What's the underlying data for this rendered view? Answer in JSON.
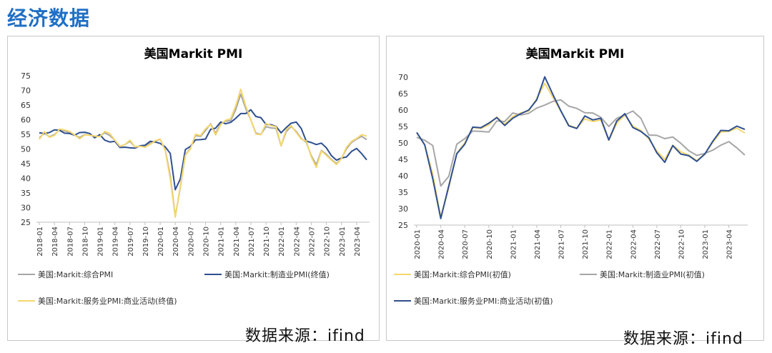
{
  "page_title": "经济数据",
  "sources": [
    "数据来源：ifind",
    "数据来源：ifind"
  ],
  "chart_data": [
    {
      "type": "line",
      "title": "美国Markit  PMI",
      "xlabel": "",
      "ylabel": "",
      "ylim": [
        25,
        75
      ],
      "yticks": [
        25,
        30,
        35,
        40,
        45,
        50,
        55,
        60,
        65,
        70,
        75
      ],
      "grid": false,
      "legend_position": "bottom",
      "x": [
        "2018-01",
        "2018-02",
        "2018-03",
        "2018-04",
        "2018-05",
        "2018-06",
        "2018-07",
        "2018-08",
        "2018-09",
        "2018-10",
        "2018-11",
        "2018-12",
        "2019-01",
        "2019-02",
        "2019-03",
        "2019-04",
        "2019-05",
        "2019-06",
        "2019-07",
        "2019-08",
        "2019-09",
        "2019-10",
        "2019-11",
        "2019-12",
        "2020-01",
        "2020-02",
        "2020-03",
        "2020-04",
        "2020-05",
        "2020-06",
        "2020-07",
        "2020-08",
        "2020-09",
        "2020-10",
        "2020-11",
        "2020-12",
        "2021-01",
        "2021-02",
        "2021-03",
        "2021-04",
        "2021-05",
        "2021-06",
        "2021-07",
        "2021-08",
        "2021-09",
        "2021-10",
        "2021-11",
        "2021-12",
        "2022-01",
        "2022-02",
        "2022-03",
        "2022-04",
        "2022-05",
        "2022-06",
        "2022-07",
        "2022-08",
        "2022-09",
        "2022-10",
        "2022-11",
        "2022-12",
        "2023-01",
        "2023-02",
        "2023-03",
        "2023-04",
        "2023-05",
        "2023-06"
      ],
      "xtick_labels": [
        "2018-01",
        "2018-04",
        "2018-07",
        "2018-10",
        "2019-01",
        "2019-04",
        "2019-07",
        "2019-10",
        "2020-01",
        "2020-04",
        "2020-07",
        "2020-10",
        "2021-01",
        "2021-04",
        "2021-07",
        "2021-10",
        "2022-01",
        "2022-04",
        "2022-07",
        "2022-10",
        "2023-01",
        "2023-04"
      ],
      "series": [
        {
          "name": "美国:Markit:综合PMI",
          "color": "#a6a6a6",
          "values": [
            53.8,
            55.4,
            54.2,
            54.9,
            56.6,
            56.2,
            55.7,
            54.7,
            53.9,
            54.9,
            54.7,
            54.4,
            54.4,
            55.5,
            54.6,
            53.0,
            50.9,
            51.5,
            52.6,
            50.7,
            51.0,
            50.9,
            52.0,
            52.7,
            53.3,
            49.6,
            40.9,
            27.0,
            37.0,
            47.9,
            50.3,
            54.6,
            54.3,
            56.3,
            58.6,
            55.3,
            58.7,
            59.5,
            59.7,
            63.5,
            68.7,
            63.7,
            59.9,
            55.4,
            55.0,
            57.6,
            57.2,
            57.0,
            51.1,
            55.9,
            57.7,
            56.0,
            53.6,
            52.3,
            47.7,
            44.6,
            49.5,
            48.2,
            46.4,
            45.0,
            46.8,
            50.1,
            52.3,
            53.4,
            54.3,
            53.2
          ]
        },
        {
          "name": "美国:Markit:制造业PMI(终值)",
          "color": "#2f4f8f",
          "values": [
            55.5,
            55.3,
            55.6,
            56.5,
            56.4,
            55.4,
            55.3,
            54.7,
            55.6,
            55.7,
            55.3,
            53.8,
            54.9,
            53.0,
            52.4,
            52.6,
            50.5,
            50.6,
            50.4,
            50.3,
            51.1,
            51.3,
            52.6,
            52.4,
            51.9,
            50.7,
            48.5,
            36.1,
            39.8,
            49.8,
            50.9,
            53.1,
            53.2,
            53.4,
            56.7,
            57.1,
            59.2,
            58.6,
            59.1,
            60.5,
            62.1,
            62.1,
            63.4,
            61.1,
            60.7,
            58.4,
            58.3,
            57.7,
            55.5,
            57.3,
            58.8,
            59.2,
            57.0,
            52.7,
            52.2,
            51.5,
            52.0,
            50.4,
            47.7,
            46.2,
            46.9,
            47.3,
            49.2,
            50.2,
            48.4,
            46.3
          ]
        },
        {
          "name": "美国:Markit:服务业PMI:商业活动(终值)",
          "color": "#f5d76e",
          "values": [
            53.3,
            55.9,
            54.0,
            54.6,
            56.8,
            56.5,
            56.0,
            54.8,
            53.5,
            54.8,
            54.7,
            54.4,
            54.2,
            56.0,
            55.3,
            53.0,
            50.9,
            51.5,
            53.0,
            50.7,
            50.9,
            50.6,
            51.6,
            52.8,
            53.4,
            49.4,
            39.8,
            26.7,
            37.5,
            47.9,
            50.0,
            55.0,
            54.6,
            56.9,
            58.4,
            54.8,
            58.3,
            59.8,
            60.4,
            64.7,
            70.4,
            64.6,
            59.9,
            55.1,
            54.9,
            58.7,
            58.0,
            57.6,
            51.2,
            56.5,
            58.0,
            55.6,
            53.4,
            52.7,
            47.3,
            43.7,
            49.3,
            47.8,
            46.2,
            44.7,
            46.8,
            50.6,
            52.6,
            53.6,
            54.9,
            54.4
          ]
        }
      ]
    },
    {
      "type": "line",
      "title": "美国Markit  PMI",
      "xlabel": "",
      "ylabel": "",
      "ylim": [
        25,
        70
      ],
      "yticks": [
        25,
        30,
        35,
        40,
        45,
        50,
        55,
        60,
        65,
        70
      ],
      "grid": false,
      "legend_position": "bottom",
      "x": [
        "2020-01",
        "2020-02",
        "2020-03",
        "2020-04",
        "2020-05",
        "2020-06",
        "2020-07",
        "2020-08",
        "2020-09",
        "2020-10",
        "2020-11",
        "2020-12",
        "2021-01",
        "2021-02",
        "2021-03",
        "2021-04",
        "2021-05",
        "2021-06",
        "2021-07",
        "2021-08",
        "2021-09",
        "2021-10",
        "2021-11",
        "2021-12",
        "2022-01",
        "2022-02",
        "2022-03",
        "2022-04",
        "2022-05",
        "2022-06",
        "2022-07",
        "2022-08",
        "2022-09",
        "2022-10",
        "2022-11",
        "2022-12",
        "2023-01",
        "2023-02",
        "2023-03",
        "2023-04",
        "2023-05",
        "2023-06"
      ],
      "xtick_labels": [
        "2020-01",
        "2020-04",
        "2020-07",
        "2020-10",
        "2021-01",
        "2021-04",
        "2021-07",
        "2021-10",
        "2022-01",
        "2022-04",
        "2022-07",
        "2022-10",
        "2023-01",
        "2023-04"
      ],
      "series": [
        {
          "name": "美国:Markit:综合PMI(初值)",
          "color": "#f5d76e",
          "values": [
            53.1,
            49.4,
            40.5,
            27.4,
            36.4,
            46.8,
            50.0,
            54.7,
            54.4,
            55.5,
            57.9,
            55.7,
            58.0,
            59.1,
            59.7,
            63.5,
            68.1,
            63.9,
            59.7,
            55.4,
            54.5,
            57.3,
            56.5,
            57.0,
            50.8,
            56.0,
            58.5,
            55.1,
            53.8,
            51.2,
            47.5,
            45.0,
            49.3,
            47.3,
            46.3,
            44.6,
            46.6,
            50.2,
            53.3,
            53.5,
            54.5,
            53.0
          ]
        },
        {
          "name": "美国:Markit:制造业PMI(初值)",
          "color": "#a6a6a6",
          "values": [
            51.7,
            50.8,
            49.2,
            36.9,
            39.8,
            49.6,
            51.3,
            53.6,
            53.5,
            53.3,
            56.7,
            56.5,
            59.1,
            58.5,
            59.0,
            60.6,
            61.5,
            62.6,
            63.1,
            61.2,
            60.5,
            59.2,
            59.1,
            57.8,
            55.0,
            57.5,
            58.5,
            59.7,
            57.5,
            52.4,
            52.3,
            51.3,
            51.8,
            49.9,
            47.6,
            46.2,
            46.8,
            47.8,
            49.3,
            50.4,
            48.5,
            46.3
          ]
        },
        {
          "name": "美国:Markit:服务业PMI:商业活动(初值)",
          "color": "#2f4f8f",
          "values": [
            53.2,
            49.4,
            39.1,
            27.0,
            36.9,
            46.7,
            49.6,
            54.8,
            54.6,
            56.0,
            57.7,
            55.3,
            57.5,
            58.9,
            60.0,
            63.1,
            70.1,
            64.8,
            59.8,
            55.2,
            54.4,
            58.2,
            57.0,
            57.5,
            50.9,
            56.7,
            58.9,
            54.7,
            53.5,
            51.6,
            47.0,
            44.1,
            49.2,
            46.6,
            46.1,
            44.4,
            46.6,
            50.5,
            53.8,
            53.7,
            55.1,
            54.1
          ]
        }
      ]
    }
  ]
}
